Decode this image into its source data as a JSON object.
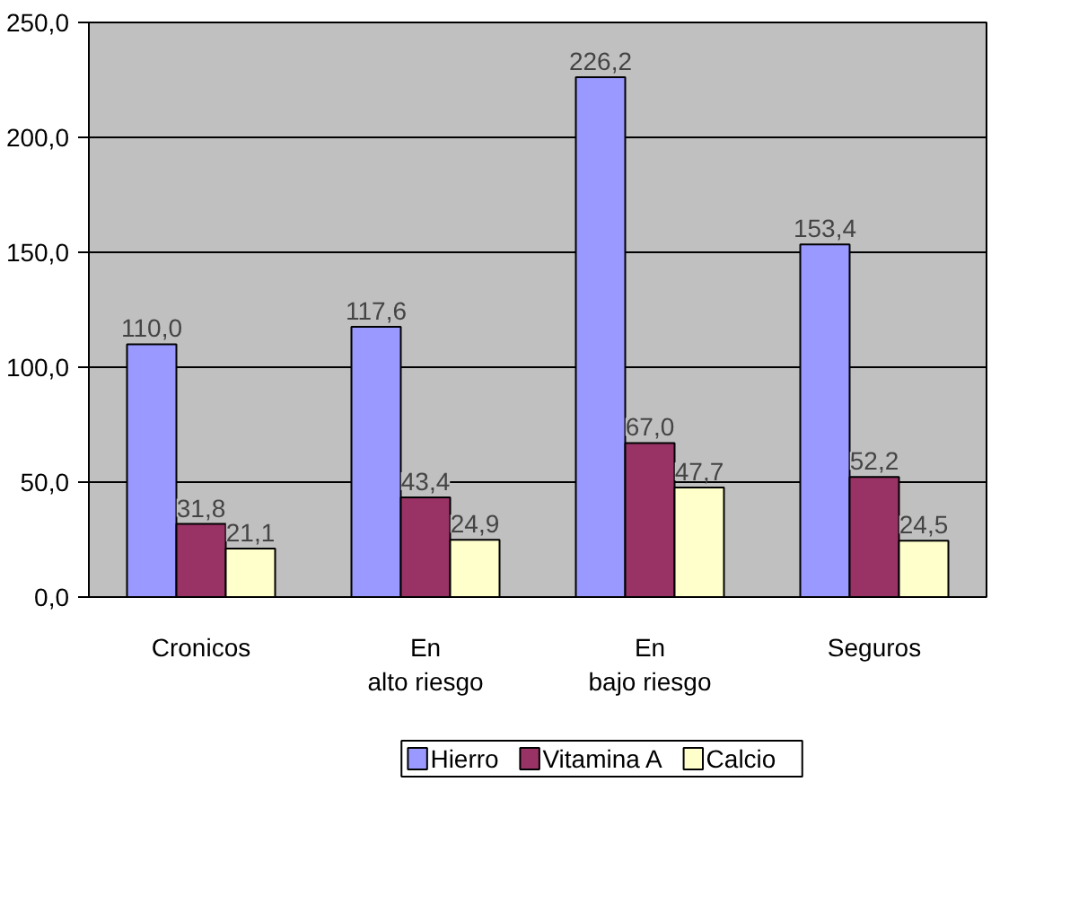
{
  "chart_data": {
    "type": "bar",
    "categories": [
      "Cronicos",
      "En alto riesgo",
      "En bajo riesgo",
      "Seguros"
    ],
    "series": [
      {
        "name": "Hierro",
        "color": "#9999ff",
        "values": [
          110.0,
          117.6,
          226.2,
          153.4
        ],
        "value_labels": [
          "110,0",
          "117,6",
          "226,2",
          "153,4"
        ]
      },
      {
        "name": "Vitamina A",
        "color": "#993366",
        "values": [
          31.8,
          43.4,
          67.0,
          52.2
        ],
        "value_labels": [
          "31,8",
          "43,4",
          "67,0",
          "52,2"
        ]
      },
      {
        "name": "Calcio",
        "color": "#ffffcc",
        "values": [
          21.1,
          24.9,
          47.7,
          24.5
        ],
        "value_labels": [
          "21,1",
          "24,9",
          "47,7",
          "24,5"
        ]
      }
    ],
    "ylim": [
      0,
      250
    ],
    "yticks": [
      {
        "value": 0,
        "label": "0,0"
      },
      {
        "value": 50,
        "label": "50,0"
      },
      {
        "value": 100,
        "label": "100,0"
      },
      {
        "value": 150,
        "label": "150,0"
      },
      {
        "value": 200,
        "label": "200,0"
      },
      {
        "value": 250,
        "label": "250,0"
      }
    ],
    "grid": "y",
    "legend": "bottom"
  }
}
